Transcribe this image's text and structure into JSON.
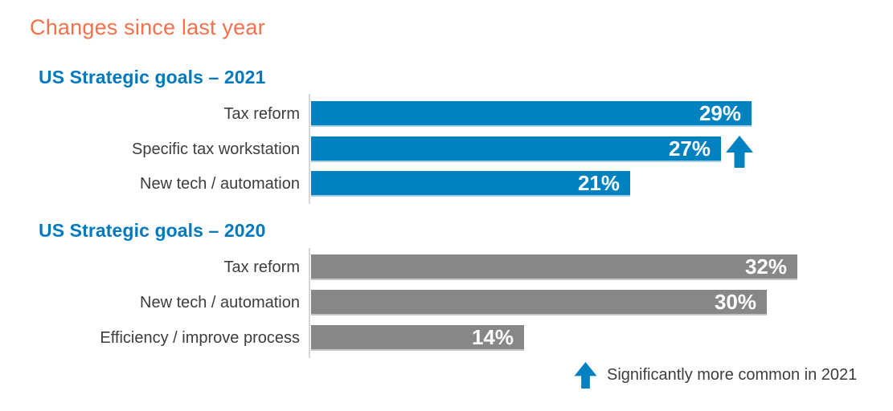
{
  "title": "Changes since last year",
  "colors": {
    "title_orange": "#F4714B",
    "heading_blue": "#0079BD",
    "bar_blue": "#0082C0",
    "bar_gray": "#878787",
    "label_text": "#3D3D3D",
    "value_text": "#FFFFFF",
    "axis_line": "#D6D6D6"
  },
  "chart_data": [
    {
      "type": "bar",
      "orientation": "horizontal",
      "title": "US Strategic goals – 2021",
      "categories": [
        "Tax reform",
        "Specific tax workstation",
        "New tech / automation"
      ],
      "values": [
        29,
        27,
        21
      ],
      "value_labels": [
        "29%",
        "27%",
        "21%"
      ],
      "unit": "%",
      "bar_color": "#0082C0",
      "gridlines": false,
      "annotations": [
        {
          "category": "Specific tax workstation",
          "symbol": "up-arrow",
          "meaning": "Significantly more common in 2021"
        }
      ]
    },
    {
      "type": "bar",
      "orientation": "horizontal",
      "title": "US Strategic goals – 2020",
      "categories": [
        "Tax reform",
        "New tech / automation",
        "Efficiency / improve process"
      ],
      "values": [
        32,
        30,
        14
      ],
      "value_labels": [
        "32%",
        "30%",
        "14%"
      ],
      "unit": "%",
      "bar_color": "#878787",
      "gridlines": false
    }
  ],
  "legend": {
    "symbol": "up-arrow",
    "symbol_color": "#0082C0",
    "label": "Significantly more common in 2021",
    "position": "bottom-right"
  }
}
